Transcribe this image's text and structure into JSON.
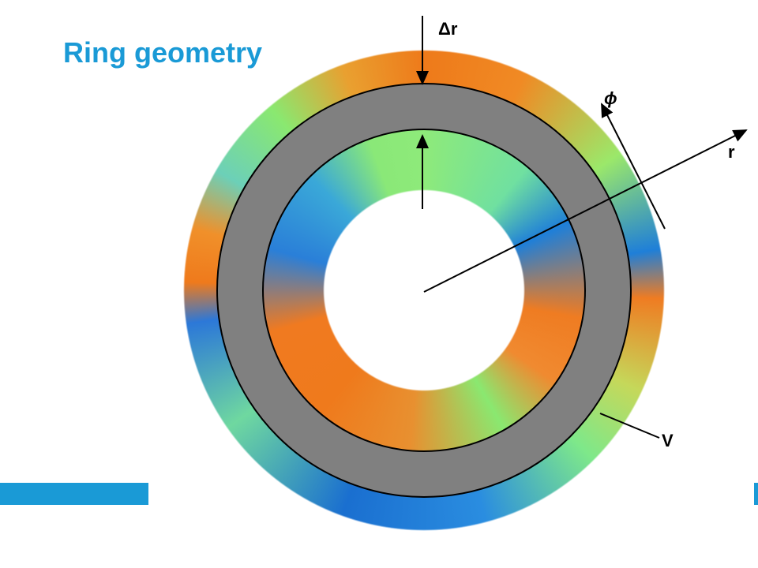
{
  "header": {
    "title": "Ring geometry"
  },
  "diagram": {
    "labels": {
      "delta_r": "Δr",
      "phi": "ϕ",
      "r": "r",
      "v": "V"
    }
  }
}
